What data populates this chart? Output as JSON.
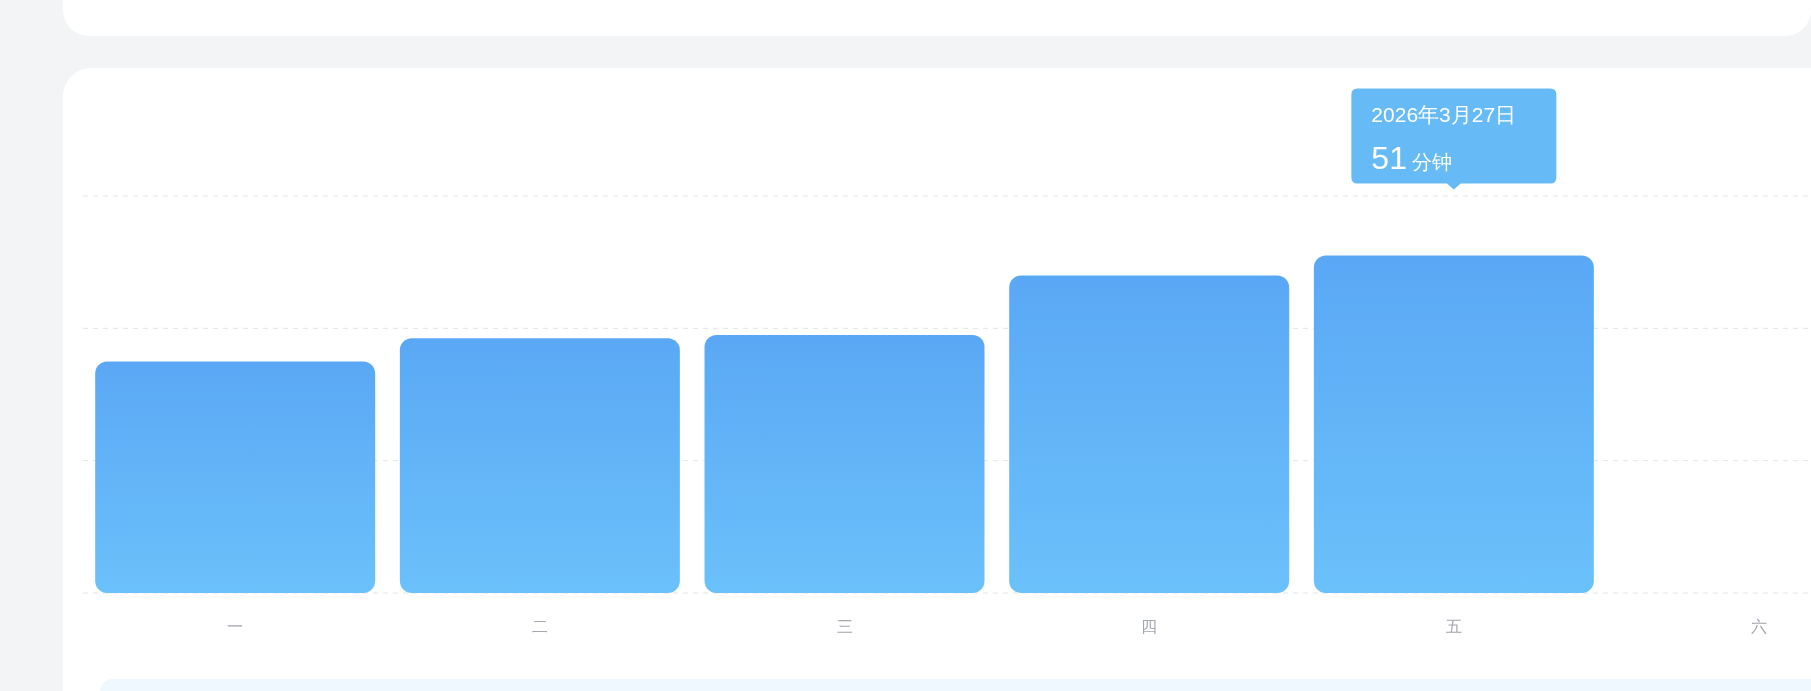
{
  "chart_data": {
    "type": "bar",
    "categories": [
      "一",
      "二",
      "三",
      "四",
      "五",
      "六"
    ],
    "values": [
      35,
      38.5,
      39,
      48,
      51,
      null
    ],
    "value_labels": [
      null,
      null,
      null,
      null,
      "51 分钟",
      null
    ],
    "color": "#5aa8f5",
    "ylim": [
      0,
      60
    ],
    "yticks": [
      {
        "value": 0,
        "label": null
      },
      {
        "value": 20,
        "label": null
      },
      {
        "value": 40,
        "label": null
      },
      {
        "value": 60,
        "label": null
      }
    ],
    "grid": "y",
    "tick_labels": "x",
    "annotations": [
      "2026年3月27日"
    ]
  }
}
